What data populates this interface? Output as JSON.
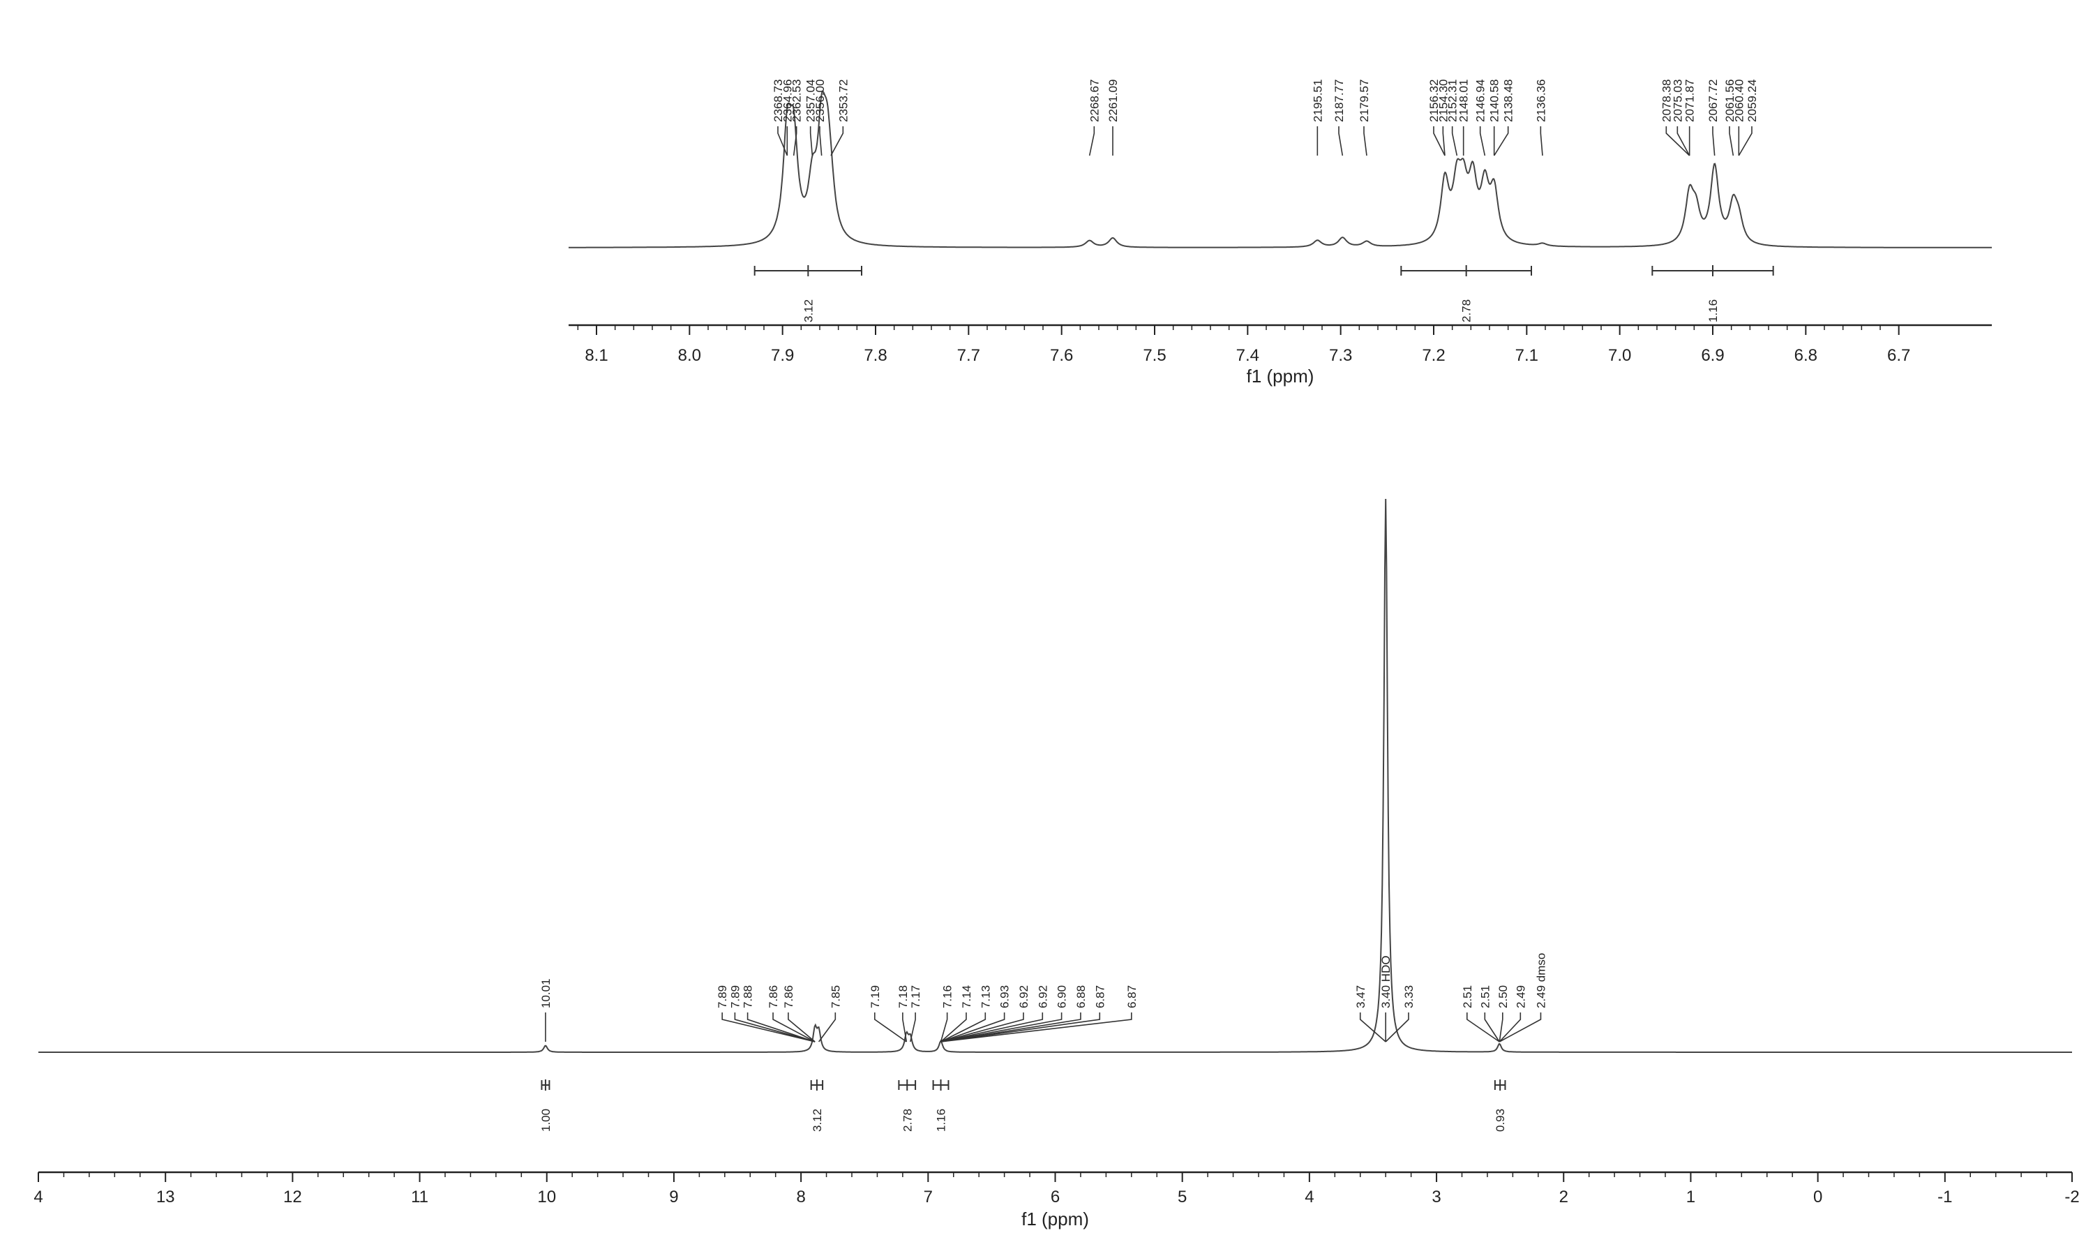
{
  "chart_data": [
    {
      "type": "line",
      "title": "",
      "xlabel": "f1 (ppm)",
      "ylabel": "",
      "xlim": [
        8.13,
        6.6
      ],
      "x_reversed": true,
      "grid": false,
      "ticks": [
        "8.1",
        "8.0",
        "7.9",
        "7.8",
        "7.7",
        "7.6",
        "7.5",
        "7.4",
        "7.3",
        "7.2",
        "7.1",
        "7.0",
        "6.9",
        "6.8",
        "6.7"
      ],
      "peaks": [
        {
          "x": 7.895,
          "h": 0.76
        },
        {
          "x": 7.888,
          "h": 0.7
        },
        {
          "x": 7.868,
          "h": 0.38
        },
        {
          "x": 7.858,
          "h": 0.74
        },
        {
          "x": 7.852,
          "h": 0.56
        },
        {
          "x": 7.848,
          "h": 0.22
        },
        {
          "x": 7.57,
          "h": 0.05
        },
        {
          "x": 7.545,
          "h": 0.07
        },
        {
          "x": 7.325,
          "h": 0.05
        },
        {
          "x": 7.298,
          "h": 0.07
        },
        {
          "x": 7.272,
          "h": 0.04
        },
        {
          "x": 7.188,
          "h": 0.46
        },
        {
          "x": 7.175,
          "h": 0.4
        },
        {
          "x": 7.168,
          "h": 0.36
        },
        {
          "x": 7.158,
          "h": 0.44
        },
        {
          "x": 7.145,
          "h": 0.4
        },
        {
          "x": 7.135,
          "h": 0.38
        },
        {
          "x": 7.083,
          "h": 0.02
        },
        {
          "x": 6.925,
          "h": 0.36
        },
        {
          "x": 6.918,
          "h": 0.22
        },
        {
          "x": 6.898,
          "h": 0.58
        },
        {
          "x": 6.878,
          "h": 0.28
        },
        {
          "x": 6.872,
          "h": 0.16
        }
      ],
      "peak_labels": [
        {
          "text": "2368.73",
          "x": 7.905
        },
        {
          "text": "2364.96",
          "x": 7.895
        },
        {
          "text": "2362.53",
          "x": 7.885
        },
        {
          "text": "2357.04",
          "x": 7.87
        },
        {
          "text": "2356.00",
          "x": 7.86
        },
        {
          "text": "2353.72",
          "x": 7.835
        },
        {
          "text": "2268.67",
          "x": 7.565
        },
        {
          "text": "2261.09",
          "x": 7.545
        },
        {
          "text": "2195.51",
          "x": 7.325
        },
        {
          "text": "2187.77",
          "x": 7.302
        },
        {
          "text": "2179.57",
          "x": 7.275
        },
        {
          "text": "2156.32",
          "x": 7.2
        },
        {
          "text": "2154.30",
          "x": 7.19
        },
        {
          "text": "2152.31",
          "x": 7.18
        },
        {
          "text": "2148.01",
          "x": 7.168
        },
        {
          "text": "2146.94",
          "x": 7.15
        },
        {
          "text": "2140.58",
          "x": 7.135
        },
        {
          "text": "2138.48",
          "x": 7.12
        },
        {
          "text": "2136.36",
          "x": 7.085
        },
        {
          "text": "2078.38",
          "x": 6.95
        },
        {
          "text": "2075.03",
          "x": 6.938
        },
        {
          "text": "2071.87",
          "x": 6.925
        },
        {
          "text": "2067.72",
          "x": 6.9
        },
        {
          "text": "2061.56",
          "x": 6.882
        },
        {
          "text": "2060.40",
          "x": 6.872
        },
        {
          "text": "2059.24",
          "x": 6.858
        }
      ],
      "integrals": [
        {
          "from": 7.93,
          "to": 7.815,
          "label": "3.12"
        },
        {
          "from": 7.235,
          "to": 7.095,
          "label": "2.78"
        },
        {
          "from": 6.965,
          "to": 6.835,
          "label": "1.16"
        }
      ]
    },
    {
      "type": "line",
      "title": "",
      "xlabel": "f1 (ppm)",
      "ylabel": "",
      "xlim": [
        14.0,
        -2.0
      ],
      "x_reversed": true,
      "grid": false,
      "ticks": [
        "4",
        "13",
        "12",
        "11",
        "10",
        "9",
        "8",
        "7",
        "6",
        "5",
        "4",
        "3",
        "2",
        "1",
        "0",
        "-1",
        "-2"
      ],
      "peaks": [
        {
          "x": 10.01,
          "h": 0.012
        },
        {
          "x": 7.89,
          "h": 0.04
        },
        {
          "x": 7.86,
          "h": 0.035
        },
        {
          "x": 7.17,
          "h": 0.03
        },
        {
          "x": 7.14,
          "h": 0.025
        },
        {
          "x": 6.9,
          "h": 0.02
        },
        {
          "x": 3.4,
          "h": 1.0
        },
        {
          "x": 2.505,
          "h": 0.015
        }
      ],
      "peak_labels": [
        {
          "text": "10.01",
          "x": 10.01
        },
        {
          "text": "7.89",
          "x": 8.62
        },
        {
          "text": "7.89",
          "x": 8.52
        },
        {
          "text": "7.88",
          "x": 8.42
        },
        {
          "text": "7.86",
          "x": 8.22
        },
        {
          "text": "7.86",
          "x": 8.1
        },
        {
          "text": "7.85",
          "x": 7.73
        },
        {
          "text": "7.19",
          "x": 7.42
        },
        {
          "text": "7.18",
          "x": 7.2
        },
        {
          "text": "7.17",
          "x": 7.1
        },
        {
          "text": "7.16",
          "x": 6.85
        },
        {
          "text": "7.14",
          "x": 6.7
        },
        {
          "text": "7.13",
          "x": 6.55
        },
        {
          "text": "6.93",
          "x": 6.4
        },
        {
          "text": "6.92",
          "x": 6.25
        },
        {
          "text": "6.92",
          "x": 6.1
        },
        {
          "text": "6.90",
          "x": 5.95
        },
        {
          "text": "6.88",
          "x": 5.8
        },
        {
          "text": "6.87",
          "x": 5.65
        },
        {
          "text": "6.87",
          "x": 5.4
        },
        {
          "text": "3.47",
          "x": 3.6
        },
        {
          "text": "3.40 HDO",
          "x": 3.4
        },
        {
          "text": "3.33",
          "x": 3.22
        },
        {
          "text": "2.51",
          "x": 2.76
        },
        {
          "text": "2.51",
          "x": 2.62
        },
        {
          "text": "2.50",
          "x": 2.48
        },
        {
          "text": "2.49",
          "x": 2.34
        },
        {
          "text": "2.49 dmso",
          "x": 2.18
        }
      ],
      "integrals": [
        {
          "from": 10.04,
          "to": 9.98,
          "label": "1.00"
        },
        {
          "from": 7.92,
          "to": 7.83,
          "label": "3.12"
        },
        {
          "from": 7.23,
          "to": 7.1,
          "label": "2.78"
        },
        {
          "from": 6.96,
          "to": 6.84,
          "label": "1.16"
        },
        {
          "from": 2.54,
          "to": 2.46,
          "label": "0.93"
        }
      ]
    }
  ]
}
